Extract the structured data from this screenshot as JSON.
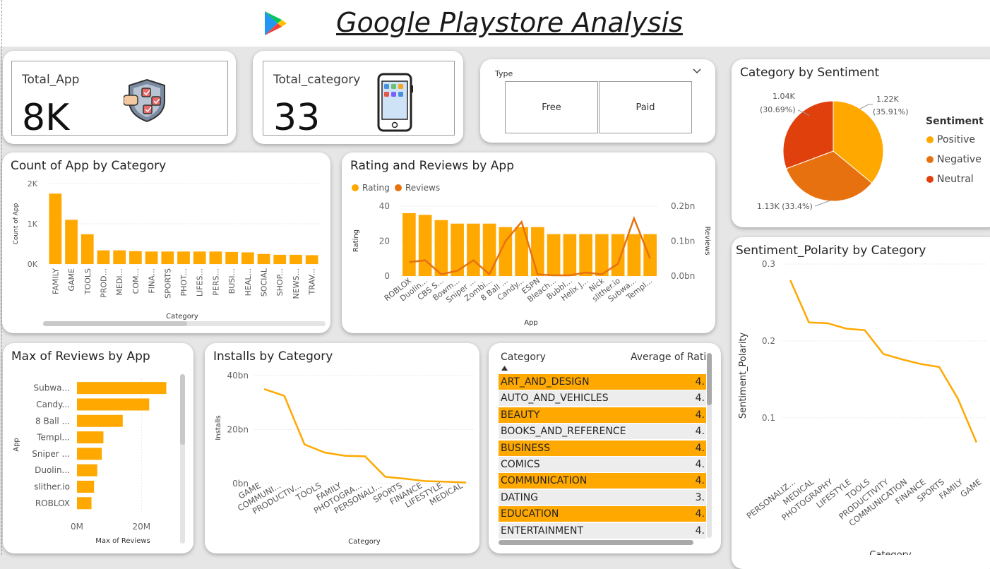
{
  "header": {
    "title": "Google Playstore Analysis",
    "logo_icon": "google-play-icon"
  },
  "colors": {
    "primary": "#FFA800",
    "secondary": "#E8710F",
    "tertiary": "#E0400B",
    "row_alt": "#EDEDED"
  },
  "kpis": [
    {
      "label": "Total_App",
      "value": "8K",
      "icon": "app-management-icon"
    },
    {
      "label": "Total_category",
      "value": "33",
      "icon": "smartphone-icon"
    }
  ],
  "slicer": {
    "title": "Type",
    "options": [
      "Free",
      "Paid"
    ],
    "dropdown_icon": "chevron-down-icon"
  },
  "count_by_category": {
    "title": "Count of App by Category",
    "chart_data": {
      "type": "bar",
      "xlabel": "Category",
      "ylabel": "Count of App",
      "y_ticks": [
        "0K",
        "1K",
        "2K"
      ],
      "ylim": [
        0,
        2000
      ],
      "categories": [
        "FAMILY",
        "GAME",
        "TOOLS",
        "PROD...",
        "MEDI...",
        "COM...",
        "FINA...",
        "SPORTS",
        "PHOT...",
        "LIFES...",
        "PERS...",
        "BUSI...",
        "HEAL...",
        "SOCIAL",
        "SHOP...",
        "NEWS...",
        "TRAV..."
      ],
      "values": [
        1750,
        1100,
        740,
        340,
        340,
        320,
        310,
        310,
        310,
        310,
        310,
        300,
        290,
        250,
        230,
        230,
        220
      ]
    }
  },
  "rating_reviews": {
    "title": "Rating and Reviews by App",
    "chart_data": {
      "type": "bar",
      "xlabel": "App",
      "ylabel_left": "Rating",
      "ylabel_right": "Reviews",
      "legend": [
        "Rating",
        "Reviews"
      ],
      "y_ticks_left": [
        "0",
        "20",
        "40"
      ],
      "y_ticks_right": [
        "0.0bn",
        "0.1bn",
        "0.2bn"
      ],
      "ylim_left": [
        0,
        40
      ],
      "ylim_right": [
        0,
        0.2
      ],
      "categories": [
        "ROBLOX",
        "Duolin...",
        "CBS S...",
        "Bowm...",
        "Sniper ...",
        "Zombi...",
        "8 Ball ...",
        "Candy...",
        "ESPN",
        "Bleach...",
        "Bubbl...",
        "Helix J...",
        "Nick",
        "slither.io",
        "Subwa...",
        "Templ..."
      ],
      "series": [
        {
          "name": "Rating",
          "values": [
            36,
            35,
            32,
            30,
            30,
            30,
            28,
            28,
            28,
            24,
            24,
            24,
            24,
            24,
            24,
            24
          ]
        },
        {
          "name": "Reviews",
          "values": [
            0.04,
            0.045,
            0.005,
            0.015,
            0.045,
            0.005,
            0.1,
            0.155,
            0.005,
            0.002,
            0.002,
            0.01,
            0.005,
            0.035,
            0.165,
            0.05
          ]
        }
      ]
    }
  },
  "category_sentiment": {
    "title": "Category by Sentiment",
    "legend_title": "Sentiment",
    "chart_data": {
      "type": "pie",
      "slices": [
        {
          "name": "Positive",
          "value": 1220,
          "label": "1.22K",
          "pct": "(35.91%)"
        },
        {
          "name": "Negative",
          "value": 1130,
          "label": "1.13K (33.4%)",
          "pct": ""
        },
        {
          "name": "Neutral",
          "value": 1040,
          "label": "1.04K",
          "pct": "(30.69%)"
        }
      ]
    }
  },
  "sentiment_polarity": {
    "title": "Sentiment_Polarity by Category",
    "chart_data": {
      "type": "line",
      "xlabel": "Category",
      "ylabel": "Sentiment_Polarity",
      "y_ticks": [
        "0.1",
        "0.2",
        "0.3"
      ],
      "ylim": [
        0.03,
        0.3
      ],
      "categories": [
        "PERSONALIZ...",
        "MEDICAL",
        "PHOTOGRAPHY",
        "LIFESTYLE",
        "TOOLS",
        "PRODUCTIVITY",
        "COMMUNICATION",
        "FINANCE",
        "SPORTS",
        "FAMILY",
        "GAME"
      ],
      "values": [
        0.279,
        0.224,
        0.223,
        0.216,
        0.214,
        0.183,
        0.176,
        0.17,
        0.166,
        0.125,
        0.068
      ]
    }
  },
  "max_reviews": {
    "title": "Max of Reviews by App",
    "chart_data": {
      "type": "bar",
      "orientation": "horizontal",
      "xlabel": "Max of Reviews",
      "ylabel": "App",
      "x_ticks": [
        "0M",
        "20M"
      ],
      "xlim": [
        0,
        30
      ],
      "categories": [
        "Subwa...",
        "Candy...",
        "8 Ball ...",
        "Templ...",
        "Sniper ...",
        "Duolin...",
        "slither.io",
        "ROBLOX"
      ],
      "values": [
        27.7,
        22.4,
        14.2,
        8.2,
        7.7,
        6.3,
        5.3,
        4.5
      ]
    }
  },
  "installs": {
    "title": "Installs by Category",
    "chart_data": {
      "type": "line",
      "xlabel": "Category",
      "ylabel": "Installs",
      "y_ticks": [
        "0bn",
        "20bn",
        "40bn"
      ],
      "ylim": [
        0,
        40
      ],
      "categories": [
        "GAME",
        "COMMUNI...",
        "PRODUCTIV...",
        "TOOLS",
        "FAMILY",
        "PHOTOGRA...",
        "PERSONALI...",
        "SPORTS",
        "FINANCE",
        "LIFESTYLE",
        "MEDICAL"
      ],
      "values": [
        35,
        32.5,
        14.5,
        11.5,
        10.3,
        10.1,
        2.5,
        1.8,
        0.9,
        0.7,
        0.4
      ]
    }
  },
  "rating_table": {
    "headers": [
      "Category",
      "Average of Ratin"
    ],
    "sort_icon": "sort-ascending-icon",
    "rows": [
      {
        "category": "ART_AND_DESIGN",
        "value": "4.",
        "highlight": true
      },
      {
        "category": "AUTO_AND_VEHICLES",
        "value": "4.",
        "highlight": false
      },
      {
        "category": "BEAUTY",
        "value": "4.",
        "highlight": true
      },
      {
        "category": "BOOKS_AND_REFERENCE",
        "value": "4.",
        "highlight": false
      },
      {
        "category": "BUSINESS",
        "value": "4.",
        "highlight": true
      },
      {
        "category": "COMICS",
        "value": "4.",
        "highlight": false
      },
      {
        "category": "COMMUNICATION",
        "value": "4.",
        "highlight": true
      },
      {
        "category": "DATING",
        "value": "3.",
        "highlight": false
      },
      {
        "category": "EDUCATION",
        "value": "4.",
        "highlight": true
      },
      {
        "category": "ENTERTAINMENT",
        "value": "4.",
        "highlight": false
      }
    ]
  }
}
